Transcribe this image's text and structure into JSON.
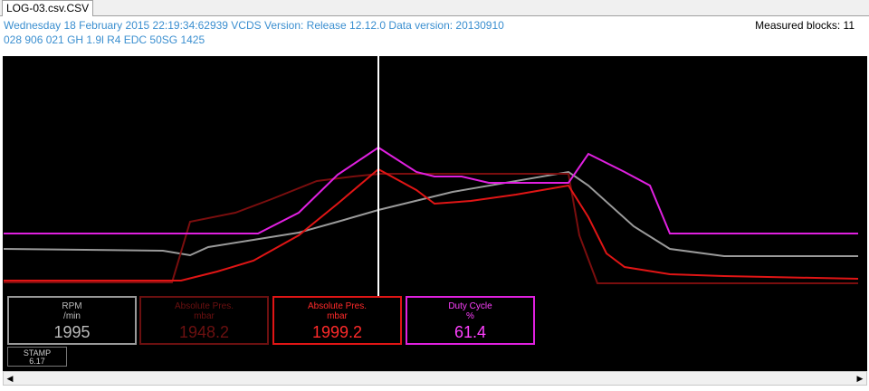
{
  "tab": "LOG-03.csv.CSV",
  "header": {
    "line1": "Wednesday 18 February 2015 22:19:34:62939 VCDS Version: Release 12.12.0 Data version: 20130910",
    "line2": "028 906 021 GH  1.9l R4 EDC    50SG  1425",
    "blocks": "Measured blocks: 11"
  },
  "gauges": [
    {
      "label": "RPM",
      "unit": "/min",
      "value": 1995
    },
    {
      "label": "Absolute Pres.",
      "unit": "mbar",
      "value": 1948.2
    },
    {
      "label": "Absolute Pres.",
      "unit": "mbar",
      "value": 1999.2
    },
    {
      "label": "Duty Cycle",
      "unit": "%",
      "value": 61.4
    }
  ],
  "stamp": {
    "label": "STAMP",
    "value": 6.17
  }
}
